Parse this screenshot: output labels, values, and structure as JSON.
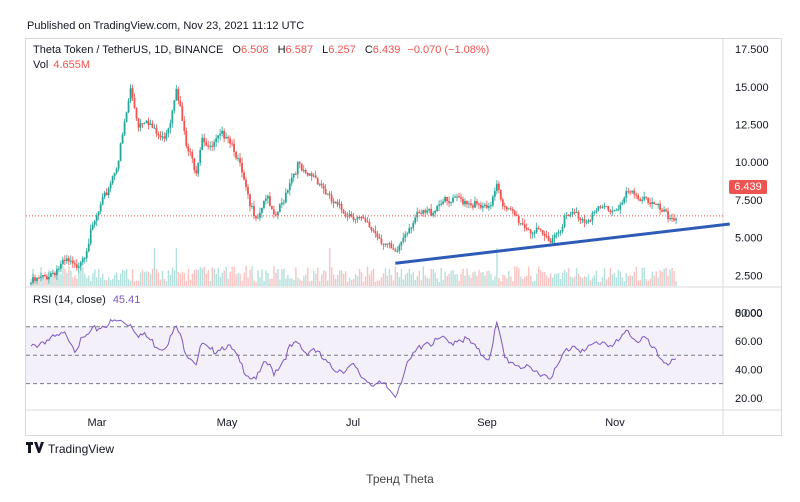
{
  "header": {
    "published": "Published on TradingView.com, Nov 23, 2021 11:12 UTC"
  },
  "legend": {
    "symbol": "Theta Token / TetherUS, 1D, BINANCE",
    "o_label": "O",
    "o": "6.508",
    "h_label": "H",
    "h": "6.587",
    "l_label": "L",
    "l": "6.257",
    "c_label": "C",
    "c": "6.439",
    "change": "−0.070 (−1.08%)",
    "vol_label": "Vol",
    "vol": "4.655M"
  },
  "rsi": {
    "label": "RSI (14, close)",
    "value": "45.41"
  },
  "price_tag": "6.439",
  "footer": {
    "logo_text": "TradingView",
    "caption": "Тренд Theta"
  },
  "colors": {
    "up": "#26a69a",
    "down": "#ef5350",
    "rsi": "#7e57c2",
    "trend": "#2e5bb8"
  },
  "chart_data": [
    {
      "type": "candlestick",
      "y_ticks": [
        "17.500",
        "15.000",
        "12.500",
        "10.000",
        "7.500",
        "5.000",
        "2.500",
        "0.000"
      ],
      "y_tick_values": [
        17.5,
        15,
        12.5,
        10,
        7.5,
        5,
        2.5,
        0
      ],
      "x_ticks": [
        "Mar",
        "May",
        "Jul",
        "Sep",
        "Nov"
      ],
      "ylim": [
        -1,
        18.5
      ],
      "anchors_close": [
        [
          0,
          2.0
        ],
        [
          6,
          2.3
        ],
        [
          12,
          2.8
        ],
        [
          18,
          3.4
        ],
        [
          22,
          3.0
        ],
        [
          27,
          4.0
        ],
        [
          32,
          6.0
        ],
        [
          38,
          8.0
        ],
        [
          44,
          10.2
        ],
        [
          50,
          14.8
        ],
        [
          54,
          12.5
        ],
        [
          58,
          13.0
        ],
        [
          62,
          12.0
        ],
        [
          66,
          11.5
        ],
        [
          70,
          12.8
        ],
        [
          73,
          15.2
        ],
        [
          78,
          11.0
        ],
        [
          83,
          9.5
        ],
        [
          86,
          11.8
        ],
        [
          90,
          10.8
        ],
        [
          94,
          11.5
        ],
        [
          98,
          12.0
        ],
        [
          102,
          11.0
        ],
        [
          106,
          9.2
        ],
        [
          110,
          7.0
        ],
        [
          114,
          6.5
        ],
        [
          118,
          7.8
        ],
        [
          122,
          6.2
        ],
        [
          126,
          7.2
        ],
        [
          130,
          8.8
        ],
        [
          134,
          9.8
        ],
        [
          138,
          9.0
        ],
        [
          142,
          9.2
        ],
        [
          146,
          8.5
        ],
        [
          150,
          7.5
        ],
        [
          154,
          7.0
        ],
        [
          158,
          6.7
        ],
        [
          162,
          6.5
        ],
        [
          166,
          6.1
        ],
        [
          172,
          5.5
        ],
        [
          178,
          4.6
        ],
        [
          183,
          3.8
        ],
        [
          188,
          5.4
        ],
        [
          193,
          6.3
        ],
        [
          198,
          6.6
        ],
        [
          202,
          6.8
        ],
        [
          206,
          7.5
        ],
        [
          210,
          7.2
        ],
        [
          215,
          7.6
        ],
        [
          220,
          7.4
        ],
        [
          225,
          7.0
        ],
        [
          230,
          6.8
        ],
        [
          234,
          8.8
        ],
        [
          238,
          6.8
        ],
        [
          242,
          6.6
        ],
        [
          247,
          5.9
        ],
        [
          252,
          5.4
        ],
        [
          256,
          5.2
        ],
        [
          260,
          4.9
        ],
        [
          264,
          5.3
        ],
        [
          268,
          6.2
        ],
        [
          273,
          6.6
        ],
        [
          278,
          6.2
        ],
        [
          283,
          6.6
        ],
        [
          288,
          7.0
        ],
        [
          292,
          6.8
        ],
        [
          297,
          7.3
        ],
        [
          300,
          8.0
        ],
        [
          304,
          7.6
        ],
        [
          308,
          7.8
        ],
        [
          312,
          7.2
        ],
        [
          316,
          6.8
        ],
        [
          320,
          6.3
        ],
        [
          324,
          6.4
        ]
      ],
      "volume_note": "volume bars shown below price series",
      "trendline": {
        "from": [
          183,
          3.3
        ],
        "to": [
          350,
          5.9
        ]
      },
      "last_price": 6.439
    },
    {
      "type": "line",
      "name": "RSI (14, close)",
      "y_ticks": [
        "80.00",
        "60.00",
        "40.00",
        "20.00"
      ],
      "y_tick_values": [
        80,
        60,
        40,
        20
      ],
      "bands": [
        70,
        50,
        30
      ],
      "ylim": [
        15,
        90
      ],
      "anchors": [
        [
          0,
          55
        ],
        [
          6,
          60
        ],
        [
          12,
          62
        ],
        [
          18,
          65
        ],
        [
          22,
          55
        ],
        [
          27,
          62
        ],
        [
          32,
          68
        ],
        [
          38,
          72
        ],
        [
          44,
          74
        ],
        [
          50,
          72
        ],
        [
          54,
          65
        ],
        [
          58,
          63
        ],
        [
          62,
          58
        ],
        [
          66,
          55
        ],
        [
          70,
          62
        ],
        [
          73,
          70
        ],
        [
          78,
          52
        ],
        [
          83,
          45
        ],
        [
          86,
          58
        ],
        [
          90,
          52
        ],
        [
          94,
          55
        ],
        [
          98,
          57
        ],
        [
          102,
          52
        ],
        [
          106,
          42
        ],
        [
          110,
          35
        ],
        [
          114,
          35
        ],
        [
          118,
          45
        ],
        [
          122,
          38
        ],
        [
          126,
          45
        ],
        [
          130,
          55
        ],
        [
          134,
          58
        ],
        [
          138,
          52
        ],
        [
          142,
          55
        ],
        [
          146,
          48
        ],
        [
          150,
          42
        ],
        [
          154,
          40
        ],
        [
          158,
          40
        ],
        [
          162,
          42
        ],
        [
          166,
          35
        ],
        [
          172,
          30
        ],
        [
          178,
          28
        ],
        [
          183,
          22
        ],
        [
          188,
          40
        ],
        [
          193,
          52
        ],
        [
          198,
          60
        ],
        [
          202,
          58
        ],
        [
          206,
          62
        ],
        [
          210,
          58
        ],
        [
          215,
          62
        ],
        [
          220,
          60
        ],
        [
          225,
          52
        ],
        [
          230,
          48
        ],
        [
          234,
          72
        ],
        [
          238,
          48
        ],
        [
          242,
          45
        ],
        [
          247,
          42
        ],
        [
          252,
          38
        ],
        [
          256,
          38
        ],
        [
          260,
          35
        ],
        [
          264,
          40
        ],
        [
          268,
          52
        ],
        [
          273,
          58
        ],
        [
          278,
          52
        ],
        [
          283,
          58
        ],
        [
          288,
          60
        ],
        [
          292,
          56
        ],
        [
          297,
          62
        ],
        [
          300,
          68
        ],
        [
          304,
          60
        ],
        [
          308,
          62
        ],
        [
          312,
          55
        ],
        [
          316,
          48
        ],
        [
          320,
          45
        ],
        [
          324,
          45
        ]
      ]
    }
  ]
}
